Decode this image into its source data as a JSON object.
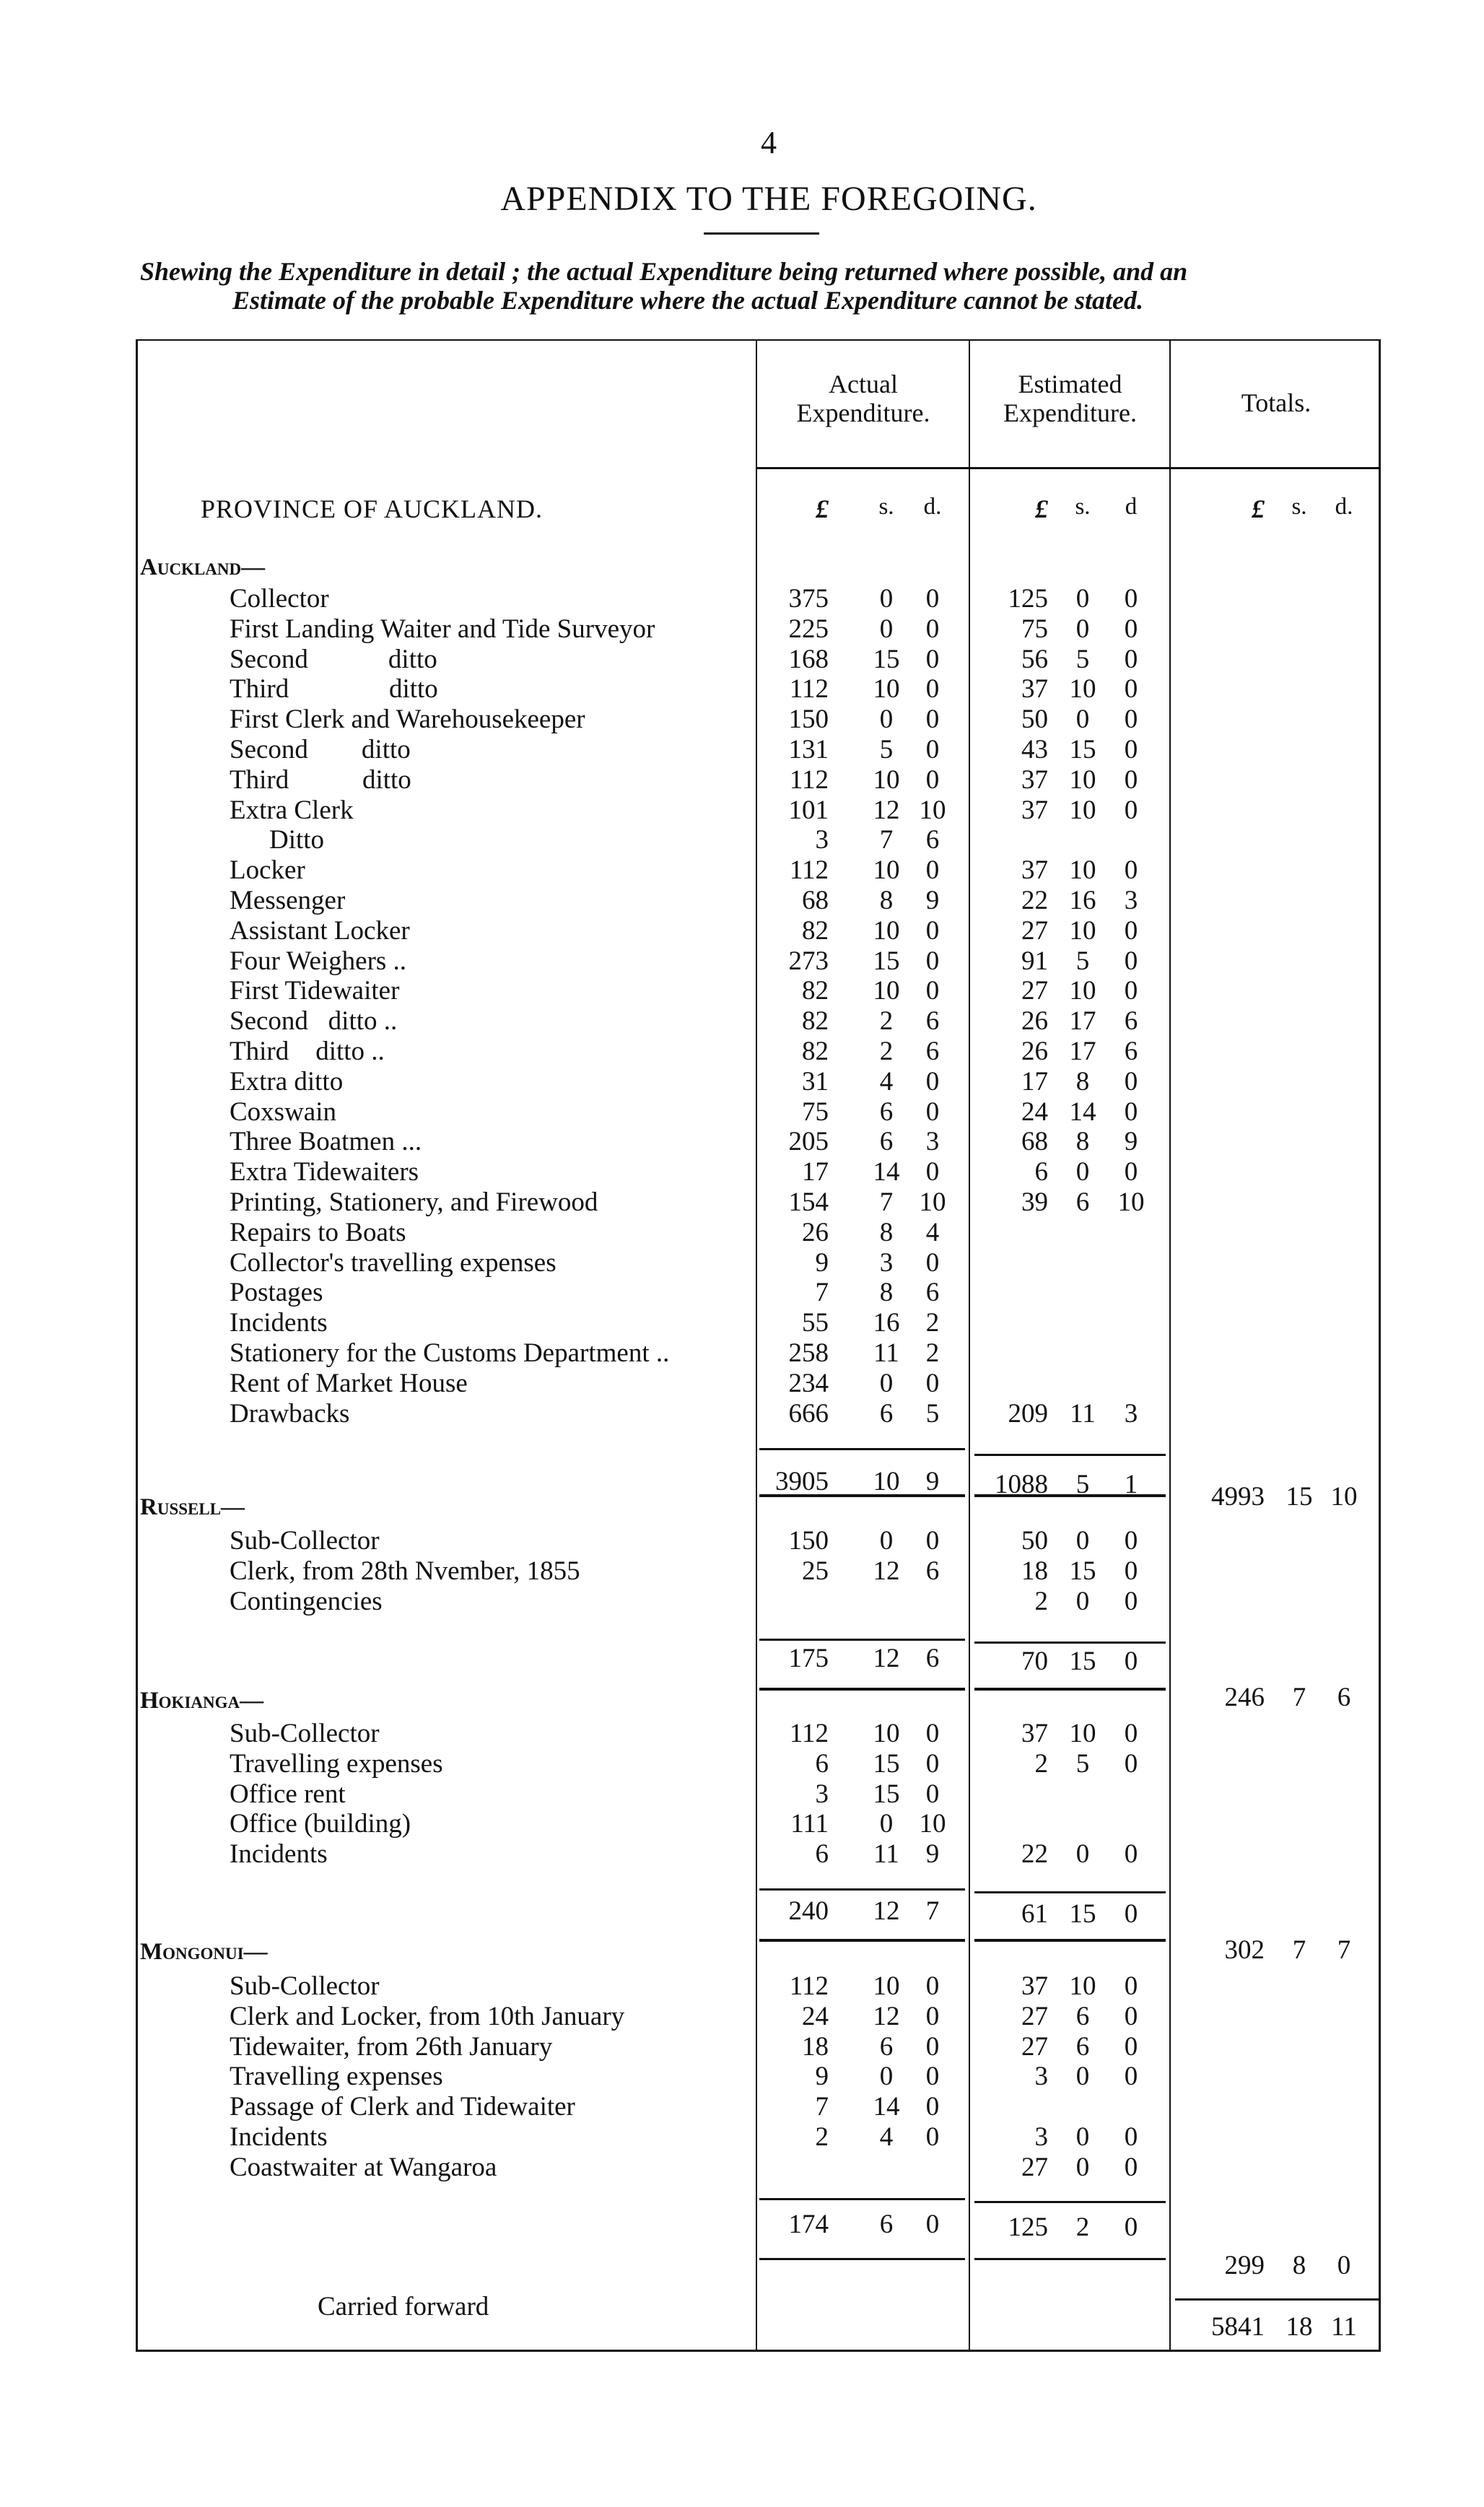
{
  "page_number": "4",
  "title": "APPENDIX TO THE FOREGOING.",
  "subtitle_line1": "Shewing the Expenditure in detail ; the actual Expenditure being returned where possible, and an",
  "subtitle_line2": "Estimate of the probable Expenditure where the actual Expenditure cannot be stated.",
  "header": {
    "actual_1": "Actual",
    "actual_2": "Expenditure.",
    "estimated_1": "Estimated",
    "estimated_2": "Expenditure.",
    "totals": "Totals.",
    "province": "PROVINCE OF AUCKLAND.",
    "actual_units": [
      "£",
      "s.",
      "d."
    ],
    "estimated_units": [
      "£",
      "s.",
      "d"
    ],
    "totals_units": [
      "£",
      "s.",
      "d."
    ]
  },
  "sections": [
    {
      "heading": "Auckland—",
      "rows": [
        {
          "label": "Collector",
          "actual": [
            "375",
            "0",
            "0"
          ],
          "estimated": [
            "125",
            "0",
            "0"
          ]
        },
        {
          "label": "First Landing Waiter and Tide Surveyor",
          "actual": [
            "225",
            "0",
            "0"
          ],
          "estimated": [
            "75",
            "0",
            "0"
          ]
        },
        {
          "label": "Second            ditto",
          "actual": [
            "168",
            "15",
            "0"
          ],
          "estimated": [
            "56",
            "5",
            "0"
          ]
        },
        {
          "label": "Third               ditto",
          "actual": [
            "112",
            "10",
            "0"
          ],
          "estimated": [
            "37",
            "10",
            "0"
          ]
        },
        {
          "label": "First Clerk and Warehousekeeper",
          "actual": [
            "150",
            "0",
            "0"
          ],
          "estimated": [
            "50",
            "0",
            "0"
          ]
        },
        {
          "label": "Second        ditto",
          "actual": [
            "131",
            "5",
            "0"
          ],
          "estimated": [
            "43",
            "15",
            "0"
          ]
        },
        {
          "label": "Third           ditto",
          "actual": [
            "112",
            "10",
            "0"
          ],
          "estimated": [
            "37",
            "10",
            "0"
          ]
        },
        {
          "label": "Extra Clerk",
          "actual": [
            "101",
            "12",
            "10"
          ],
          "estimated": [
            "37",
            "10",
            "0"
          ]
        },
        {
          "label": "Ditto",
          "indent": true,
          "actual": [
            "3",
            "7",
            "6"
          ],
          "estimated": [
            "",
            "",
            ""
          ]
        },
        {
          "label": "Locker",
          "actual": [
            "112",
            "10",
            "0"
          ],
          "estimated": [
            "37",
            "10",
            "0"
          ]
        },
        {
          "label": "Messenger",
          "actual": [
            "68",
            "8",
            "9"
          ],
          "estimated": [
            "22",
            "16",
            "3"
          ]
        },
        {
          "label": "Assistant Locker",
          "actual": [
            "82",
            "10",
            "0"
          ],
          "estimated": [
            "27",
            "10",
            "0"
          ]
        },
        {
          "label": "Four Weighers ..",
          "actual": [
            "273",
            "15",
            "0"
          ],
          "estimated": [
            "91",
            "5",
            "0"
          ]
        },
        {
          "label": "First Tidewaiter",
          "actual": [
            "82",
            "10",
            "0"
          ],
          "estimated": [
            "27",
            "10",
            "0"
          ]
        },
        {
          "label": "Second   ditto ..",
          "actual": [
            "82",
            "2",
            "6"
          ],
          "estimated": [
            "26",
            "17",
            "6"
          ]
        },
        {
          "label": "Third    ditto ..",
          "actual": [
            "82",
            "2",
            "6"
          ],
          "estimated": [
            "26",
            "17",
            "6"
          ]
        },
        {
          "label": "Extra ditto",
          "actual": [
            "31",
            "4",
            "0"
          ],
          "estimated": [
            "17",
            "8",
            "0"
          ]
        },
        {
          "label": "Coxswain",
          "actual": [
            "75",
            "6",
            "0"
          ],
          "estimated": [
            "24",
            "14",
            "0"
          ]
        },
        {
          "label": "Three Boatmen ...",
          "actual": [
            "205",
            "6",
            "3"
          ],
          "estimated": [
            "68",
            "8",
            "9"
          ]
        },
        {
          "label": "Extra Tidewaiters",
          "actual": [
            "17",
            "14",
            "0"
          ],
          "estimated": [
            "6",
            "0",
            "0"
          ]
        },
        {
          "label": "Printing, Stationery, and Firewood",
          "actual": [
            "154",
            "7",
            "10"
          ],
          "estimated": [
            "39",
            "6",
            "10"
          ]
        },
        {
          "label": "Repairs to Boats",
          "actual": [
            "26",
            "8",
            "4"
          ],
          "estimated": [
            "",
            "",
            ""
          ]
        },
        {
          "label": "Collector's travelling expenses",
          "actual": [
            "9",
            "3",
            "0"
          ],
          "estimated": [
            "",
            "",
            ""
          ]
        },
        {
          "label": "Postages",
          "actual": [
            "7",
            "8",
            "6"
          ],
          "estimated": [
            "",
            "",
            ""
          ]
        },
        {
          "label": "Incidents",
          "actual": [
            "55",
            "16",
            "2"
          ],
          "estimated": [
            "",
            "",
            ""
          ]
        },
        {
          "label": "Stationery for the Customs Department ..",
          "actual": [
            "258",
            "11",
            "2"
          ],
          "estimated": [
            "",
            "",
            ""
          ]
        },
        {
          "label": "Rent of Market House",
          "actual": [
            "234",
            "0",
            "0"
          ],
          "estimated": [
            "",
            "",
            ""
          ]
        },
        {
          "label": "Drawbacks",
          "actual": [
            "666",
            "6",
            "5"
          ],
          "estimated": [
            "209",
            "11",
            "3"
          ]
        }
      ],
      "subtotal_actual": [
        "3905",
        "10",
        "9"
      ],
      "subtotal_estimated": [
        "1088",
        "5",
        "1"
      ],
      "total": [
        "4993",
        "15",
        "10"
      ]
    },
    {
      "heading": "Russell—",
      "rows": [
        {
          "label": "Sub-Collector",
          "actual": [
            "150",
            "0",
            "0"
          ],
          "estimated": [
            "50",
            "0",
            "0"
          ]
        },
        {
          "label": "Clerk, from 28th Nvember, 1855",
          "actual": [
            "25",
            "12",
            "6"
          ],
          "estimated": [
            "18",
            "15",
            "0"
          ]
        },
        {
          "label": "Contingencies",
          "actual": [
            "",
            "",
            ""
          ],
          "estimated": [
            "2",
            "0",
            "0"
          ]
        }
      ],
      "subtotal_actual": [
        "175",
        "12",
        "6"
      ],
      "subtotal_estimated": [
        "70",
        "15",
        "0"
      ],
      "total": [
        "246",
        "7",
        "6"
      ]
    },
    {
      "heading": "Hokianga—",
      "rows": [
        {
          "label": "Sub-Collector",
          "actual": [
            "112",
            "10",
            "0"
          ],
          "estimated": [
            "37",
            "10",
            "0"
          ]
        },
        {
          "label": "Travelling expenses",
          "actual": [
            "6",
            "15",
            "0"
          ],
          "estimated": [
            "2",
            "5",
            "0"
          ]
        },
        {
          "label": "Office rent",
          "actual": [
            "3",
            "15",
            "0"
          ],
          "estimated": [
            "",
            "",
            ""
          ]
        },
        {
          "label": "Office (building)",
          "actual": [
            "111",
            "0",
            "10"
          ],
          "estimated": [
            "",
            "",
            ""
          ]
        },
        {
          "label": "Incidents",
          "actual": [
            "6",
            "11",
            "9"
          ],
          "estimated": [
            "22",
            "0",
            "0"
          ]
        }
      ],
      "subtotal_actual": [
        "240",
        "12",
        "7"
      ],
      "subtotal_estimated": [
        "61",
        "15",
        "0"
      ],
      "total": [
        "302",
        "7",
        "7"
      ]
    },
    {
      "heading": "Mongonui—",
      "rows": [
        {
          "label": "Sub-Collector",
          "actual": [
            "112",
            "10",
            "0"
          ],
          "estimated": [
            "37",
            "10",
            "0"
          ]
        },
        {
          "label": "Clerk and Locker, from 10th January",
          "actual": [
            "24",
            "12",
            "0"
          ],
          "estimated": [
            "27",
            "6",
            "0"
          ]
        },
        {
          "label": "Tidewaiter, from 26th January",
          "actual": [
            "18",
            "6",
            "0"
          ],
          "estimated": [
            "27",
            "6",
            "0"
          ]
        },
        {
          "label": "Travelling expenses",
          "actual": [
            "9",
            "0",
            "0"
          ],
          "estimated": [
            "3",
            "0",
            "0"
          ]
        },
        {
          "label": "Passage of Clerk and Tidewaiter",
          "actual": [
            "7",
            "14",
            "0"
          ],
          "estimated": [
            "",
            "",
            ""
          ]
        },
        {
          "label": "Incidents",
          "actual": [
            "2",
            "4",
            "0"
          ],
          "estimated": [
            "3",
            "0",
            "0"
          ]
        },
        {
          "label": "Coastwaiter at Wangaroa",
          "actual": [
            "",
            "",
            ""
          ],
          "estimated": [
            "27",
            "0",
            "0"
          ]
        }
      ],
      "subtotal_actual": [
        "174",
        "6",
        "0"
      ],
      "subtotal_estimated": [
        "125",
        "2",
        "0"
      ],
      "total": [
        "299",
        "8",
        "0"
      ]
    }
  ],
  "carried_forward": {
    "label": "Carried forward",
    "total": [
      "5841",
      "18",
      "11"
    ]
  }
}
